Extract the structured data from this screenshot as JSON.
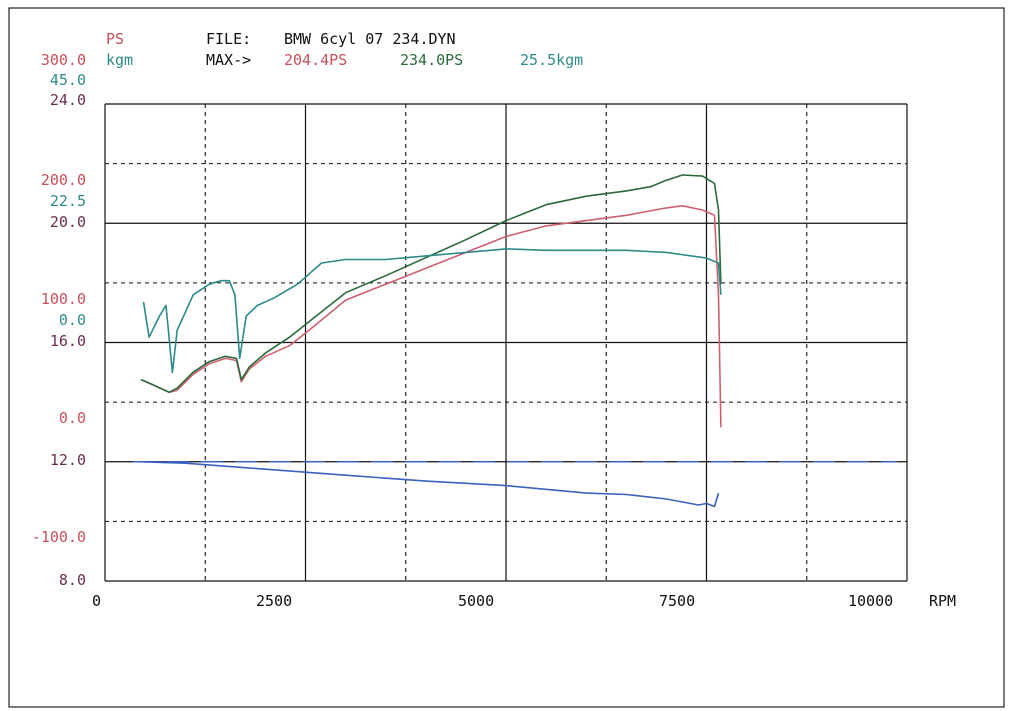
{
  "header": {
    "ps_label": "PS",
    "kgm_label": "kgm",
    "file_label": "FILE:",
    "file_name": "BMW 6cyl 07 234.DYN",
    "max_label": "MAX->",
    "max_ps_red": "204.4PS",
    "max_ps_green": "234.0PS",
    "max_kgm": "25.5kgm"
  },
  "axes": {
    "ps_ticks": [
      "300.0",
      "200.0",
      "100.0",
      "0.0",
      "-100.0"
    ],
    "kgm_ticks": [
      "45.0",
      "22.5",
      "0.0"
    ],
    "afr_ticks": [
      "24.0",
      "20.0",
      "16.0",
      "12.0",
      "8.0"
    ],
    "x_ticks": [
      "0",
      "2500",
      "5000",
      "7500",
      "10000"
    ],
    "x_unit": "RPM"
  },
  "colors": {
    "ps_red": "#d06070",
    "ps_green": "#2a6a3a",
    "kgm_teal": "#2e8a8a",
    "afr_blue": "#3a62c0",
    "afr_ref": "#3a62c0",
    "grid": "#111111"
  },
  "chart_data": {
    "type": "line",
    "title": "",
    "xlabel": "RPM",
    "xlim": [
      0,
      10000
    ],
    "ps_range": [
      -150,
      300
    ],
    "kgm_range": [
      -22.5,
      45
    ],
    "afr_range": [
      8,
      24
    ],
    "grid": true,
    "series": [
      {
        "name": "204.4PS",
        "axis": "ps",
        "color": "ps_red",
        "x": [
          450,
          600,
          800,
          900,
          1100,
          1300,
          1500,
          1640,
          1700,
          1800,
          2000,
          2300,
          2600,
          3000,
          3500,
          4000,
          4500,
          5000,
          5500,
          6000,
          6500,
          7000,
          7200,
          7450,
          7600,
          7650,
          7680
        ],
        "y": [
          40,
          35,
          28,
          30,
          45,
          55,
          60,
          58,
          38,
          50,
          62,
          72,
          90,
          115,
          130,
          145,
          160,
          175,
          185,
          190,
          195,
          202,
          204,
          200,
          195,
          120,
          -5
        ]
      },
      {
        "name": "234.0PS",
        "axis": "ps",
        "color": "ps_green",
        "x": [
          450,
          600,
          800,
          900,
          1100,
          1300,
          1500,
          1640,
          1700,
          1800,
          2000,
          2300,
          2600,
          3000,
          3500,
          4000,
          4500,
          5000,
          5500,
          6000,
          6500,
          6800,
          7000,
          7200,
          7450,
          7600,
          7650,
          7680
        ],
        "y": [
          40,
          35,
          28,
          32,
          47,
          57,
          62,
          60,
          40,
          52,
          65,
          80,
          98,
          122,
          138,
          155,
          172,
          190,
          205,
          213,
          218,
          222,
          228,
          233,
          232,
          225,
          200,
          130
        ]
      },
      {
        "name": "25.5kgm",
        "axis": "kgm",
        "color": "kgm_teal",
        "x": [
          480,
          550,
          680,
          760,
          840,
          900,
          1100,
          1300,
          1450,
          1550,
          1620,
          1680,
          1760,
          1900,
          2100,
          2400,
          2700,
          3000,
          3500,
          4000,
          4500,
          5000,
          5500,
          6000,
          6500,
          7000,
          7500,
          7650,
          7680
        ],
        "y": [
          17,
          12,
          15,
          16.5,
          7,
          13,
          18,
          19.5,
          20,
          20,
          18,
          9,
          15,
          16.5,
          17.5,
          19.5,
          22.5,
          23,
          23,
          23.5,
          24,
          24.5,
          24.3,
          24.3,
          24.3,
          24,
          23.2,
          22.5,
          18
        ]
      },
      {
        "name": "AFR",
        "axis": "afr",
        "color": "afr_blue",
        "x": [
          450,
          1000,
          2000,
          3000,
          4000,
          5000,
          6000,
          6500,
          7000,
          7400,
          7500,
          7600,
          7650
        ],
        "y": [
          12.0,
          11.95,
          11.75,
          11.55,
          11.35,
          11.2,
          10.95,
          10.9,
          10.75,
          10.55,
          10.6,
          10.5,
          10.95
        ]
      }
    ],
    "reference_lines": [
      {
        "axis": "afr",
        "y": 12.0,
        "style": "dashed",
        "color": "afr_ref"
      }
    ]
  }
}
